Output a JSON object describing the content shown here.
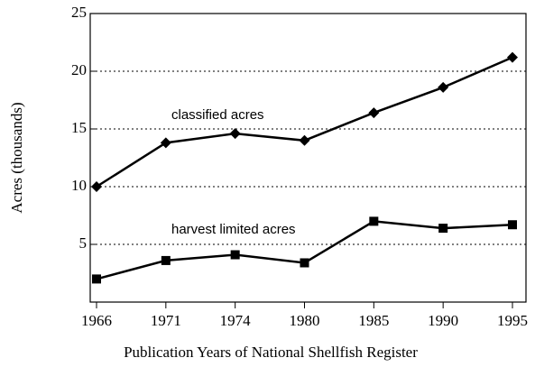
{
  "chart_data": {
    "type": "line",
    "xlabel": "Publication Years of National Shellfish Register",
    "ylabel": "Acres (thousands)",
    "categories": [
      "1966",
      "1971",
      "1974",
      "1980",
      "1985",
      "1990",
      "1995"
    ],
    "series": [
      {
        "name": "classified acres",
        "color": "#000000",
        "marker": "diamond",
        "values": [
          10.0,
          13.8,
          14.6,
          14.0,
          16.4,
          18.6,
          21.2
        ]
      },
      {
        "name": "harvest limited acres",
        "color": "#000000",
        "marker": "square",
        "values": [
          2.0,
          3.6,
          4.1,
          3.4,
          7.0,
          6.4,
          6.7
        ]
      }
    ],
    "ylim": [
      0,
      25
    ],
    "yticks": [
      5,
      10,
      15,
      20,
      25
    ],
    "grid": true
  }
}
